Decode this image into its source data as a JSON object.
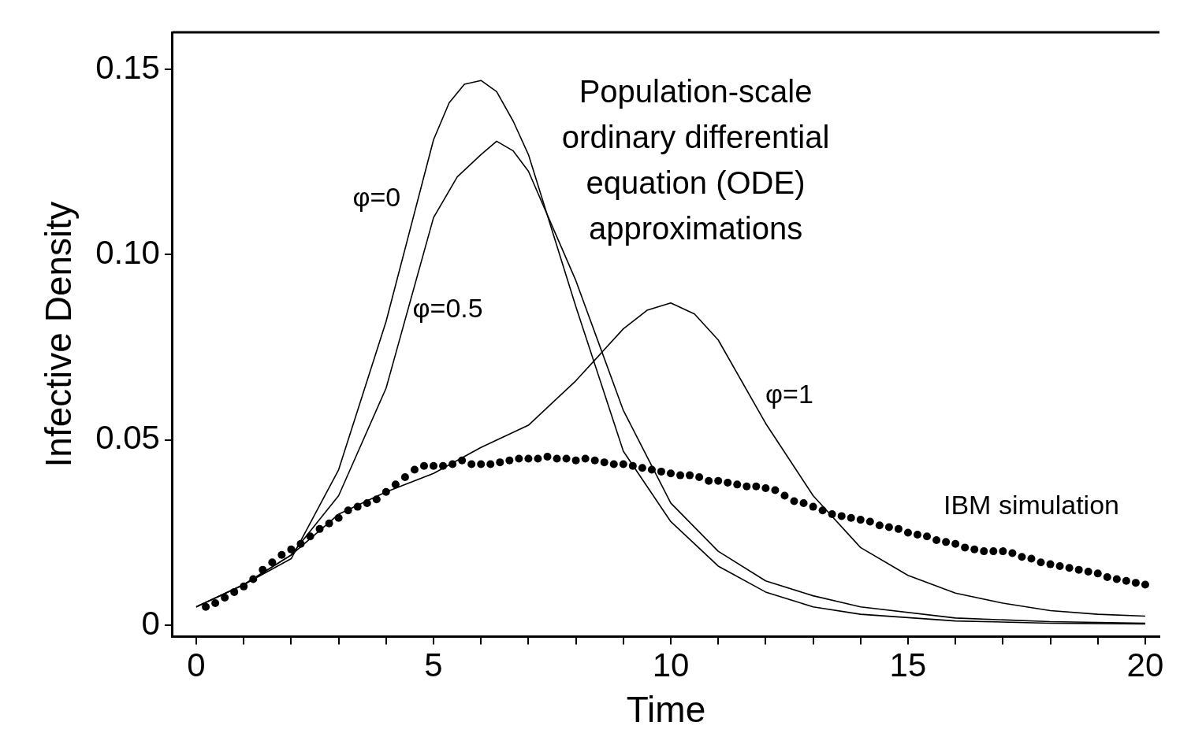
{
  "chart_data": {
    "type": "line",
    "xlabel": "Time",
    "ylabel": "Infective Density",
    "xlim": [
      -0.5,
      20.3
    ],
    "ylim": [
      -0.003,
      0.16
    ],
    "xticks": [
      0,
      {
        "value": 1,
        "label": null
      },
      {
        "value": 2,
        "label": null
      },
      {
        "value": 3,
        "label": null
      },
      {
        "value": 4,
        "label": null
      },
      5,
      {
        "value": 6,
        "label": null
      },
      {
        "value": 7,
        "label": null
      },
      {
        "value": 8,
        "label": null
      },
      {
        "value": 9,
        "label": null
      },
      10,
      {
        "value": 11,
        "label": null
      },
      {
        "value": 12,
        "label": null
      },
      {
        "value": 13,
        "label": null
      },
      {
        "value": 14,
        "label": null
      },
      15,
      {
        "value": 16,
        "label": null
      },
      {
        "value": 17,
        "label": null
      },
      {
        "value": 18,
        "label": null
      },
      {
        "value": 19,
        "label": null
      },
      20
    ],
    "yticks": [
      0,
      0.05,
      {
        "value": 0.1,
        "label": "0.10"
      },
      0.15
    ],
    "grid": false,
    "legend": false,
    "annotations": [
      "Population-scale ordinary differential equation (ODE) approximations"
    ],
    "series": [
      {
        "name": "φ=0",
        "marker": "none",
        "color": "#000000",
        "x": [
          0,
          1,
          2,
          3,
          4,
          5,
          5.33,
          5.65,
          6,
          6.33,
          6.68,
          7,
          8,
          9,
          10,
          11,
          12,
          13,
          14,
          16,
          18,
          20
        ],
        "values": [
          0.005,
          0.011,
          0.018,
          0.042,
          0.082,
          0.131,
          0.141,
          0.146,
          0.147,
          0.144,
          0.136,
          0.127,
          0.086,
          0.047,
          0.028,
          0.016,
          0.009,
          0.005,
          0.003,
          0.0012,
          0.0006,
          0.0004
        ]
      },
      {
        "name": "φ=0.5",
        "marker": "none",
        "color": "#000000",
        "x": [
          0,
          1,
          2,
          3,
          4,
          5,
          5.5,
          6,
          6.33,
          6.68,
          7,
          8,
          9,
          10,
          11,
          12,
          13,
          14,
          16,
          18,
          20
        ],
        "values": [
          0.005,
          0.011,
          0.019,
          0.035,
          0.064,
          0.11,
          0.121,
          0.127,
          0.1306,
          0.128,
          0.1225,
          0.093,
          0.058,
          0.033,
          0.02,
          0.012,
          0.008,
          0.005,
          0.002,
          0.001,
          0.0006
        ]
      },
      {
        "name": "φ=1",
        "marker": "none",
        "color": "#000000",
        "x": [
          0,
          1,
          2,
          3,
          4,
          5,
          6,
          7,
          8,
          9,
          9.5,
          10,
          10.5,
          11,
          12,
          13,
          14,
          15,
          16,
          17,
          18,
          19,
          20
        ],
        "values": [
          0.005,
          0.011,
          0.019,
          0.03,
          0.036,
          0.041,
          0.048,
          0.054,
          0.066,
          0.08,
          0.085,
          0.087,
          0.084,
          0.077,
          0.0545,
          0.035,
          0.021,
          0.0135,
          0.0087,
          0.006,
          0.004,
          0.003,
          0.0025
        ]
      },
      {
        "name": "IBM simulation",
        "type": "scatter",
        "marker": "circle",
        "color": "#000000",
        "x": [
          0.2,
          0.4,
          0.6,
          0.8,
          1,
          1.2,
          1.4,
          1.6,
          1.8,
          2,
          2.2,
          2.4,
          2.6,
          2.8,
          3,
          3.2,
          3.4,
          3.6,
          3.8,
          4,
          4.2,
          4.4,
          4.6,
          4.8,
          5,
          5.2,
          5.4,
          5.6,
          5.8,
          6,
          6.2,
          6.4,
          6.6,
          6.8,
          7,
          7.2,
          7.4,
          7.6,
          7.8,
          8,
          8.2,
          8.4,
          8.6,
          8.8,
          9,
          9.2,
          9.4,
          9.6,
          9.8,
          10,
          10.2,
          10.4,
          10.6,
          10.8,
          11,
          11.2,
          11.4,
          11.6,
          11.8,
          12,
          12.2,
          12.4,
          12.6,
          12.8,
          13,
          13.2,
          13.4,
          13.6,
          13.8,
          14,
          14.2,
          14.4,
          14.6,
          14.8,
          15,
          15.2,
          15.4,
          15.6,
          15.8,
          16,
          16.2,
          16.4,
          16.6,
          16.8,
          17,
          17.2,
          17.4,
          17.6,
          17.8,
          18,
          18.2,
          18.4,
          18.6,
          18.8,
          19,
          19.2,
          19.4,
          19.6,
          19.8,
          20
        ],
        "values": [
          0.005,
          0.006,
          0.0075,
          0.009,
          0.0105,
          0.0125,
          0.015,
          0.017,
          0.019,
          0.0205,
          0.022,
          0.024,
          0.026,
          0.0275,
          0.029,
          0.031,
          0.032,
          0.033,
          0.034,
          0.036,
          0.038,
          0.04,
          0.042,
          0.043,
          0.043,
          0.043,
          0.0435,
          0.0445,
          0.0435,
          0.0435,
          0.0435,
          0.044,
          0.0445,
          0.045,
          0.045,
          0.045,
          0.0455,
          0.045,
          0.045,
          0.0445,
          0.045,
          0.0445,
          0.044,
          0.0435,
          0.0435,
          0.043,
          0.0425,
          0.042,
          0.0415,
          0.041,
          0.0405,
          0.0405,
          0.04,
          0.039,
          0.039,
          0.0385,
          0.038,
          0.0375,
          0.0375,
          0.037,
          0.0365,
          0.035,
          0.0335,
          0.033,
          0.032,
          0.031,
          0.03,
          0.0295,
          0.029,
          0.0285,
          0.028,
          0.027,
          0.0265,
          0.026,
          0.025,
          0.0245,
          0.024,
          0.023,
          0.0225,
          0.022,
          0.021,
          0.0205,
          0.02,
          0.02,
          0.02,
          0.0195,
          0.0185,
          0.018,
          0.017,
          0.0165,
          0.016,
          0.0155,
          0.015,
          0.0145,
          0.014,
          0.013,
          0.0125,
          0.012,
          0.0115,
          0.011
        ]
      }
    ]
  }
}
